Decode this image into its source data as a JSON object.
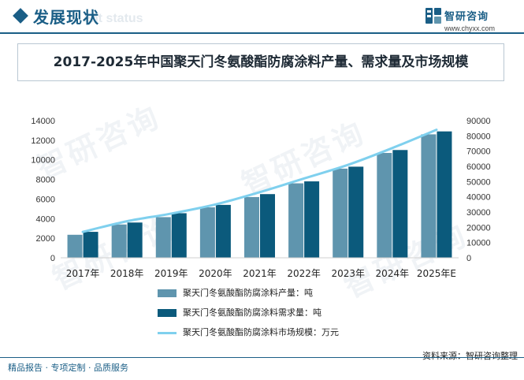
{
  "header": {
    "title": "发展现状",
    "subtitle": "ent status",
    "brand_name": "智研咨询",
    "brand_url": "www.chyxx.com"
  },
  "title": "2017-2025年中国聚天门冬氨酸酯防腐涂料产量、需求量及市场规模",
  "colors": {
    "primary": "#1a5e86",
    "series1": "#5f95ae",
    "series2": "#0b5a7c",
    "line": "#7fd0ee"
  },
  "chart_data": {
    "type": "bar",
    "categories": [
      "2017年",
      "2018年",
      "2019年",
      "2020年",
      "2021年",
      "2022年",
      "2023年",
      "2024年",
      "2025年E"
    ],
    "series": [
      {
        "name": "聚天门冬氨酸酯防腐涂料产量：吨",
        "kind": "bar",
        "axis": "left",
        "values": [
          2350,
          3400,
          4150,
          5150,
          6200,
          7600,
          9100,
          10700,
          12600
        ]
      },
      {
        "name": "聚天门冬氨酸酯防腐涂料需求量：吨",
        "kind": "bar",
        "axis": "left",
        "values": [
          2650,
          3600,
          4550,
          5400,
          6500,
          7800,
          9300,
          11000,
          12900
        ]
      },
      {
        "name": "聚天门冬氨酸酯防腐涂料市场规模：万元",
        "kind": "line",
        "axis": "right",
        "values": [
          17000,
          24000,
          29000,
          35000,
          43000,
          52000,
          61000,
          72000,
          84000
        ]
      }
    ],
    "y_left": {
      "min": 0,
      "max": 14000,
      "ticks": [
        "0",
        "2000",
        "4000",
        "6000",
        "8000",
        "10000",
        "12000",
        "14000"
      ]
    },
    "y_right": {
      "min": 0,
      "max": 90000,
      "ticks": [
        "0",
        "10000",
        "20000",
        "30000",
        "40000",
        "50000",
        "60000",
        "70000",
        "80000",
        "90000"
      ]
    },
    "grid": false,
    "legend_position": "bottom"
  },
  "source": "资料来源：智研咨询整理",
  "footer": "精品报告 · 专项定制 · 品质服务"
}
